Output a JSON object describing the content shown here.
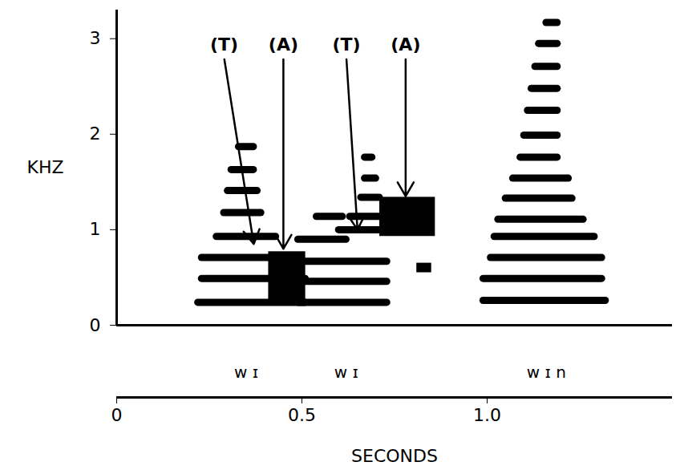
{
  "chart_data": {
    "type": "spectrogram",
    "y_label": "KHZ",
    "x_label": "SECONDS",
    "xlim": [
      0,
      1.5
    ],
    "xticks": [
      0,
      0.5,
      {
        "value": 1,
        "label": "1.0"
      }
    ],
    "ylim": [
      0,
      3.3
    ],
    "yticks": [
      0,
      1,
      2,
      3
    ],
    "color": "#000000",
    "harmonics": [
      {
        "x1": 0.22,
        "x2": 0.51,
        "y": 0.24
      },
      {
        "x1": 0.23,
        "x2": 0.51,
        "y": 0.49
      },
      {
        "x1": 0.23,
        "x2": 0.47,
        "y": 0.71
      },
      {
        "x1": 0.27,
        "x2": 0.43,
        "y": 0.93
      },
      {
        "x1": 0.29,
        "x2": 0.39,
        "y": 1.18
      },
      {
        "x1": 0.3,
        "x2": 0.38,
        "y": 1.41
      },
      {
        "x1": 0.31,
        "x2": 0.37,
        "y": 1.63
      },
      {
        "x1": 0.33,
        "x2": 0.37,
        "y": 1.87
      },
      {
        "x1": 0.49,
        "x2": 0.73,
        "y": 0.24
      },
      {
        "x1": 0.49,
        "x2": 0.73,
        "y": 0.46
      },
      {
        "x1": 0.49,
        "x2": 0.73,
        "y": 0.67
      },
      {
        "x1": 0.49,
        "x2": 0.62,
        "y": 0.9
      },
      {
        "x1": 0.6,
        "x2": 0.74,
        "y": 1.0
      },
      {
        "x1": 0.54,
        "x2": 0.61,
        "y": 1.14
      },
      {
        "x1": 0.63,
        "x2": 0.71,
        "y": 1.14
      },
      {
        "x1": 0.66,
        "x2": 0.71,
        "y": 1.34
      },
      {
        "x1": 0.67,
        "x2": 0.7,
        "y": 1.54
      },
      {
        "x1": 0.67,
        "x2": 0.69,
        "y": 1.76
      },
      {
        "x1": 0.99,
        "x2": 1.32,
        "y": 0.26
      },
      {
        "x1": 0.99,
        "x2": 1.31,
        "y": 0.49
      },
      {
        "x1": 1.01,
        "x2": 1.31,
        "y": 0.71
      },
      {
        "x1": 1.02,
        "x2": 1.29,
        "y": 0.93
      },
      {
        "x1": 1.03,
        "x2": 1.26,
        "y": 1.11
      },
      {
        "x1": 1.05,
        "x2": 1.23,
        "y": 1.33
      },
      {
        "x1": 1.07,
        "x2": 1.22,
        "y": 1.54
      },
      {
        "x1": 1.09,
        "x2": 1.19,
        "y": 1.76
      },
      {
        "x1": 1.1,
        "x2": 1.19,
        "y": 1.99
      },
      {
        "x1": 1.11,
        "x2": 1.19,
        "y": 2.25
      },
      {
        "x1": 1.12,
        "x2": 1.19,
        "y": 2.48
      },
      {
        "x1": 1.13,
        "x2": 1.19,
        "y": 2.71
      },
      {
        "x1": 1.14,
        "x2": 1.19,
        "y": 2.95
      },
      {
        "x1": 1.16,
        "x2": 1.19,
        "y": 3.17
      }
    ],
    "blobs": [
      {
        "x1": 0.41,
        "x2": 0.51,
        "y1": 0.24,
        "y2": 0.77
      },
      {
        "x1": 0.71,
        "x2": 0.86,
        "y1": 0.93,
        "y2": 1.34
      },
      {
        "x1": 0.81,
        "x2": 0.85,
        "y1": 0.55,
        "y2": 0.65
      }
    ],
    "annotations": [
      {
        "text": "(T)",
        "x": 0.37,
        "y": 0.85,
        "label_x": 0.29,
        "label_y": 2.8
      },
      {
        "text": "(A)",
        "x": 0.45,
        "y": 0.8,
        "label_x": 0.45,
        "label_y": 2.8
      },
      {
        "text": "(T)",
        "x": 0.65,
        "y": 1.0,
        "label_x": 0.62,
        "label_y": 2.8
      },
      {
        "text": "(A)",
        "x": 0.78,
        "y": 1.35,
        "label_x": 0.78,
        "label_y": 2.8
      }
    ],
    "transcription": [
      {
        "text": "w ɪ",
        "x": 0.35
      },
      {
        "text": "w ɪ",
        "x": 0.62
      },
      {
        "text": "w ɪ n",
        "x": 1.16
      }
    ]
  }
}
